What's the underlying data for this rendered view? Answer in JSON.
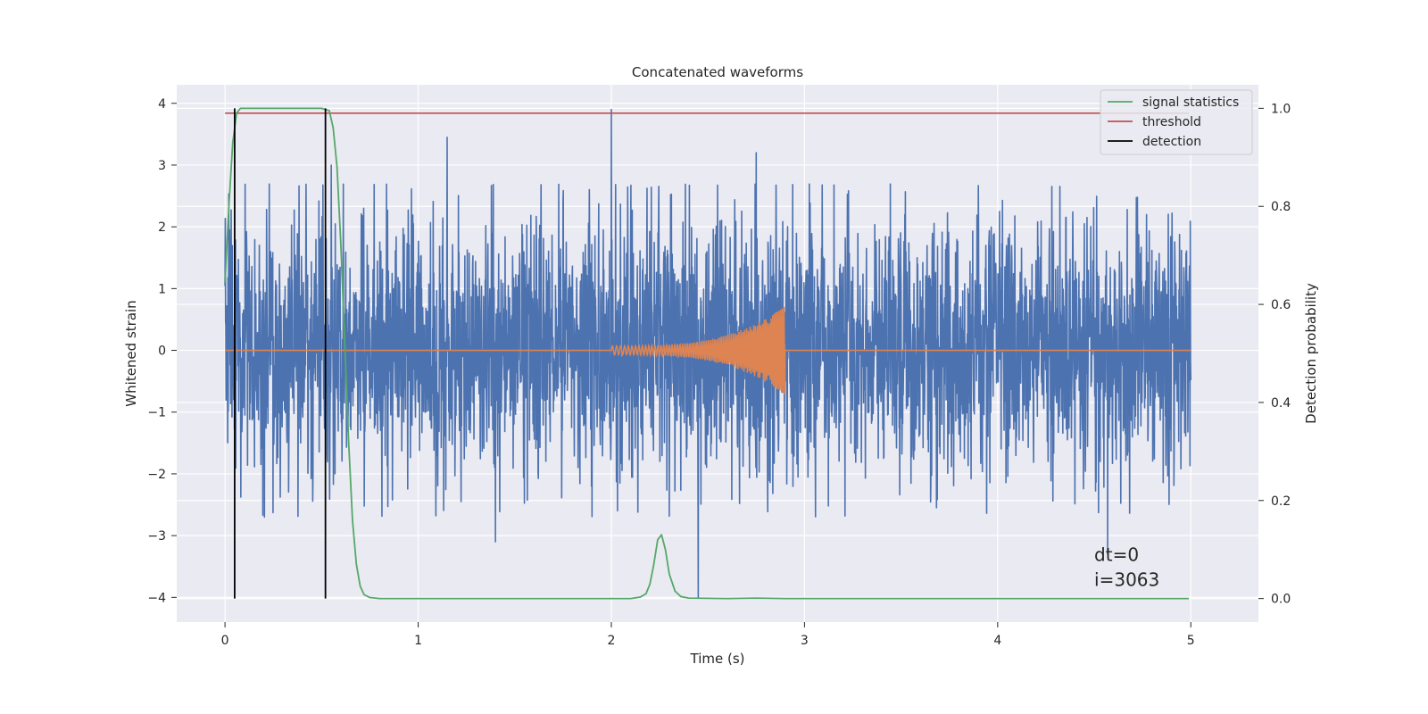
{
  "chart_data": {
    "type": "line",
    "title": "Concatenated waveforms",
    "xlabel": "Time (s)",
    "ylabel": "Whitened strain",
    "y2label": "Detection probability",
    "xlim": [
      -0.25,
      5.35
    ],
    "ylim": [
      -4.4,
      4.3
    ],
    "y2lim": [
      -0.048,
      1.048
    ],
    "xticks": [
      0,
      1,
      2,
      3,
      4,
      5
    ],
    "xtick_labels": [
      "0",
      "1",
      "2",
      "3",
      "4",
      "5"
    ],
    "yticks": [
      -4,
      -3,
      -2,
      -1,
      0,
      1,
      2,
      3,
      4
    ],
    "ytick_labels": [
      "−4",
      "−3",
      "−2",
      "−1",
      "0",
      "1",
      "2",
      "3",
      "4"
    ],
    "y2ticks": [
      0.0,
      0.2,
      0.4,
      0.6,
      0.8,
      1.0
    ],
    "y2tick_labels": [
      "0.0",
      "0.2",
      "0.4",
      "0.6",
      "0.8",
      "1.0"
    ],
    "grid": true,
    "legend_position": "top-right",
    "colors": {
      "background": "#eaeaf2",
      "grid": "#ffffff",
      "noise": "#4c72b0",
      "waveform": "#dd8452",
      "signal": "#55a868",
      "threshold": "#c44e52",
      "detection": "#000000"
    },
    "series": [
      {
        "name": "noise",
        "axis": "left",
        "x_range": [
          0,
          5
        ],
        "amplitude_envelope": 1.0,
        "peaks": [
          {
            "x": 2.0,
            "y": 3.9
          },
          {
            "x": 0.55,
            "y": 3.0
          },
          {
            "x": 1.15,
            "y": 3.45
          },
          {
            "x": 2.75,
            "y": 3.2
          },
          {
            "x": 2.45,
            "y": -4.0
          },
          {
            "x": 4.57,
            "y": -3.3
          },
          {
            "x": 1.4,
            "y": -3.1
          }
        ]
      },
      {
        "name": "waveform",
        "axis": "left",
        "x_range": [
          2.0,
          2.9
        ],
        "peak_amplitude": 0.72
      },
      {
        "name": "signal statistics",
        "axis": "right",
        "x": [
          0.0,
          0.02,
          0.04,
          0.06,
          0.08,
          0.1,
          0.2,
          0.3,
          0.4,
          0.5,
          0.54,
          0.56,
          0.58,
          0.6,
          0.62,
          0.64,
          0.66,
          0.68,
          0.7,
          0.72,
          0.75,
          0.8,
          1.0,
          1.5,
          2.0,
          2.1,
          2.15,
          2.18,
          2.2,
          2.22,
          2.24,
          2.26,
          2.28,
          2.3,
          2.33,
          2.36,
          2.4,
          2.6,
          2.75,
          2.9,
          3.5,
          4.0,
          4.5,
          4.99
        ],
        "y": [
          0.645,
          0.8,
          0.93,
          0.99,
          1.0,
          1.0,
          1.0,
          1.0,
          1.0,
          1.0,
          0.995,
          0.96,
          0.88,
          0.72,
          0.52,
          0.32,
          0.16,
          0.07,
          0.025,
          0.008,
          0.002,
          0.0,
          0.0,
          0.0,
          0.0,
          0.0,
          0.003,
          0.01,
          0.03,
          0.07,
          0.12,
          0.13,
          0.1,
          0.05,
          0.015,
          0.004,
          0.001,
          0.0,
          0.001,
          0.0,
          0.0,
          0.0,
          0.0,
          0.0
        ]
      },
      {
        "name": "threshold",
        "axis": "right",
        "x": [
          0.0,
          4.99
        ],
        "y": [
          0.99,
          0.99
        ]
      },
      {
        "name": "detection",
        "axis": "right",
        "x": [
          0.05,
          0.52
        ],
        "y_range": [
          0.0,
          1.0
        ]
      }
    ],
    "legend": [
      "signal statistics",
      "threshold",
      "detection"
    ],
    "annotations": [
      "dt=0",
      "i=3063"
    ],
    "annotation_anchor": {
      "x": 4.5,
      "y": -3.5
    }
  }
}
